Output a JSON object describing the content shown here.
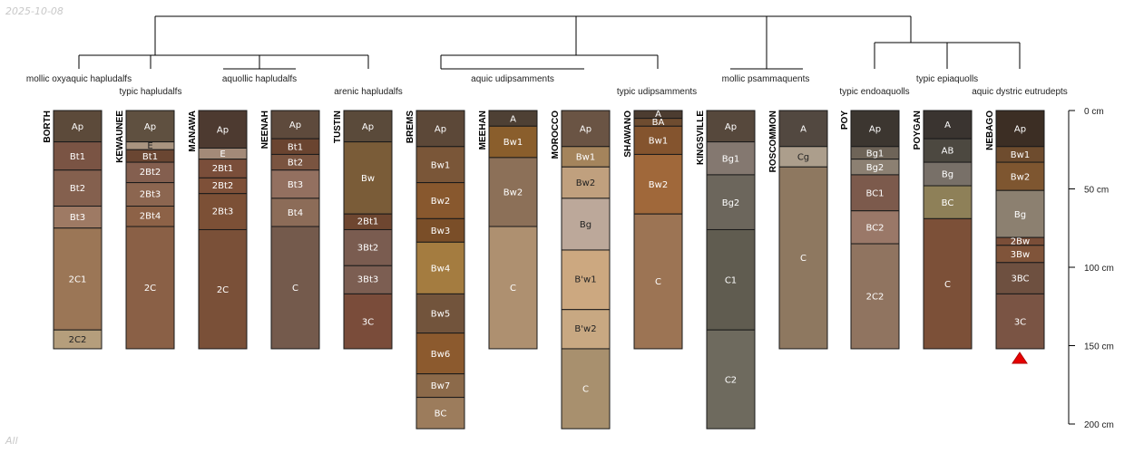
{
  "date_stamp": "2025-10-08",
  "corner_label": "All",
  "max_depth_cm": 200,
  "depth_axis": {
    "ticks": [
      0,
      50,
      100,
      150,
      200
    ],
    "tick_labels": [
      "0 cm",
      "50 cm",
      "100 cm",
      "150 cm",
      "200 cm"
    ]
  },
  "subgroups": [
    "mollic oxyaquic hapludalfs",
    "typic hapludalfs",
    "aquollic hapludalfs",
    "arenic hapludalfs",
    "aquic udipsamments",
    "typic udipsamments",
    "mollic psammaquents",
    "typic endoaquolls",
    "typic epiaquolls",
    "aquic dystric eutrudepts"
  ],
  "profiles": [
    {
      "name": "BORTH",
      "horizons": [
        {
          "name": "Ap",
          "top": 0,
          "bottom": 20,
          "color": "#5c4a3a"
        },
        {
          "name": "Bt1",
          "top": 20,
          "bottom": 38,
          "color": "#7a5444"
        },
        {
          "name": "Bt2",
          "top": 38,
          "bottom": 61,
          "color": "#84604e"
        },
        {
          "name": "Bt3",
          "top": 61,
          "bottom": 75,
          "color": "#9e7a64"
        },
        {
          "name": "2C1",
          "top": 75,
          "bottom": 140,
          "color": "#9b7656"
        },
        {
          "name": "2C2",
          "top": 140,
          "bottom": 152,
          "color": "#b59e7c"
        }
      ]
    },
    {
      "name": "KEWAUNEE",
      "horizons": [
        {
          "name": "Ap",
          "top": 0,
          "bottom": 20,
          "color": "#5f5040"
        },
        {
          "name": "E",
          "top": 20,
          "bottom": 25,
          "color": "#a99480"
        },
        {
          "name": "Bt1",
          "top": 25,
          "bottom": 33,
          "color": "#6a4632"
        },
        {
          "name": "2Bt2",
          "top": 33,
          "bottom": 46,
          "color": "#845f4f"
        },
        {
          "name": "2Bt3",
          "top": 46,
          "bottom": 61,
          "color": "#8c6650"
        },
        {
          "name": "2Bt4",
          "top": 61,
          "bottom": 74,
          "color": "#8d6247"
        },
        {
          "name": "2C",
          "top": 74,
          "bottom": 152,
          "color": "#8a6046"
        }
      ]
    },
    {
      "name": "MANAWA",
      "horizons": [
        {
          "name": "Ap",
          "top": 0,
          "bottom": 24,
          "color": "#4d3a30"
        },
        {
          "name": "E",
          "top": 24,
          "bottom": 31,
          "color": "#a38a78"
        },
        {
          "name": "2Bt1",
          "top": 31,
          "bottom": 43,
          "color": "#7a4e3a"
        },
        {
          "name": "2Bt2",
          "top": 43,
          "bottom": 53,
          "color": "#7e5038"
        },
        {
          "name": "2Bt3",
          "top": 53,
          "bottom": 76,
          "color": "#7c5036"
        },
        {
          "name": "2C",
          "top": 76,
          "bottom": 152,
          "color": "#7a5038"
        }
      ]
    },
    {
      "name": "NEENAH",
      "horizons": [
        {
          "name": "Ap",
          "top": 0,
          "bottom": 18,
          "color": "#5e4a3c"
        },
        {
          "name": "Bt1",
          "top": 18,
          "bottom": 28,
          "color": "#6a4430"
        },
        {
          "name": "Bt2",
          "top": 28,
          "bottom": 38,
          "color": "#7a5440"
        },
        {
          "name": "Bt3",
          "top": 38,
          "bottom": 56,
          "color": "#937060"
        },
        {
          "name": "Bt4",
          "top": 56,
          "bottom": 74,
          "color": "#8c6c58"
        },
        {
          "name": "C",
          "top": 74,
          "bottom": 152,
          "color": "#745a4c"
        }
      ]
    },
    {
      "name": "TUSTIN",
      "horizons": [
        {
          "name": "Ap",
          "top": 0,
          "bottom": 20,
          "color": "#5a4a3a"
        },
        {
          "name": "Bw",
          "top": 20,
          "bottom": 66,
          "color": "#7a5c38"
        },
        {
          "name": "2Bt1",
          "top": 66,
          "bottom": 76,
          "color": "#6e4630"
        },
        {
          "name": "3Bt2",
          "top": 76,
          "bottom": 99,
          "color": "#7a5c50"
        },
        {
          "name": "3Bt3",
          "top": 99,
          "bottom": 117,
          "color": "#7c5e52"
        },
        {
          "name": "3C",
          "top": 117,
          "bottom": 152,
          "color": "#7a4c3a"
        }
      ]
    },
    {
      "name": "BREMS",
      "horizons": [
        {
          "name": "Ap",
          "top": 0,
          "bottom": 23,
          "color": "#5c4838"
        },
        {
          "name": "Bw1",
          "top": 23,
          "bottom": 46,
          "color": "#7a5638"
        },
        {
          "name": "Bw2",
          "top": 46,
          "bottom": 69,
          "color": "#88582e"
        },
        {
          "name": "Bw3",
          "top": 69,
          "bottom": 84,
          "color": "#7a4e28"
        },
        {
          "name": "Bw4",
          "top": 84,
          "bottom": 117,
          "color": "#a47c40"
        },
        {
          "name": "Bw5",
          "top": 117,
          "bottom": 142,
          "color": "#72543c"
        },
        {
          "name": "Bw6",
          "top": 142,
          "bottom": 168,
          "color": "#8c5a2e"
        },
        {
          "name": "Bw7",
          "top": 168,
          "bottom": 183,
          "color": "#8c6a4a"
        },
        {
          "name": "BC",
          "top": 183,
          "bottom": 203,
          "color": "#9c7c5c"
        }
      ]
    },
    {
      "name": "MEEHAN",
      "horizons": [
        {
          "name": "A",
          "top": 0,
          "bottom": 10,
          "color": "#4e4034"
        },
        {
          "name": "Bw1",
          "top": 10,
          "bottom": 30,
          "color": "#8a5e2c"
        },
        {
          "name": "Bw2",
          "top": 30,
          "bottom": 74,
          "color": "#8c7058"
        },
        {
          "name": "C",
          "top": 74,
          "bottom": 152,
          "color": "#ae9070"
        }
      ]
    },
    {
      "name": "MOROCCO",
      "horizons": [
        {
          "name": "Ap",
          "top": 0,
          "bottom": 23,
          "color": "#6a5444"
        },
        {
          "name": "Bw1",
          "top": 23,
          "bottom": 36,
          "color": "#a4845c"
        },
        {
          "name": "Bw2",
          "top": 36,
          "bottom": 56,
          "color": "#c0a07e"
        },
        {
          "name": "Bg",
          "top": 56,
          "bottom": 89,
          "color": "#bca89a"
        },
        {
          "name": "B'w1",
          "top": 89,
          "bottom": 127,
          "color": "#cca880"
        },
        {
          "name": "B'w2",
          "top": 127,
          "bottom": 152,
          "color": "#c8a882"
        },
        {
          "name": "C",
          "top": 152,
          "bottom": 203,
          "color": "#a8906e"
        }
      ]
    },
    {
      "name": "SHAWANO",
      "horizons": [
        {
          "name": "A",
          "top": 0,
          "bottom": 5,
          "color": "#4c3c30"
        },
        {
          "name": "BA",
          "top": 5,
          "bottom": 10,
          "color": "#6e4c30"
        },
        {
          "name": "Bw1",
          "top": 10,
          "bottom": 28,
          "color": "#84542e"
        },
        {
          "name": "Bw2",
          "top": 28,
          "bottom": 66,
          "color": "#a0683a"
        },
        {
          "name": "C",
          "top": 66,
          "bottom": 152,
          "color": "#9c7454"
        }
      ]
    },
    {
      "name": "KINGSVILLE",
      "horizons": [
        {
          "name": "Ap",
          "top": 0,
          "bottom": 20,
          "color": "#56483c"
        },
        {
          "name": "Bg1",
          "top": 20,
          "bottom": 41,
          "color": "#847870"
        },
        {
          "name": "Bg2",
          "top": 41,
          "bottom": 76,
          "color": "#6c665c"
        },
        {
          "name": "C1",
          "top": 76,
          "bottom": 140,
          "color": "#605c50"
        },
        {
          "name": "C2",
          "top": 140,
          "bottom": 203,
          "color": "#6e6a5e"
        }
      ]
    },
    {
      "name": "ROSCOMMON",
      "horizons": [
        {
          "name": "A",
          "top": 0,
          "bottom": 23,
          "color": "#524840"
        },
        {
          "name": "Cg",
          "top": 23,
          "bottom": 36,
          "color": "#ac9e8c"
        },
        {
          "name": "C",
          "top": 36,
          "bottom": 152,
          "color": "#8e7860"
        }
      ]
    },
    {
      "name": "POY",
      "horizons": [
        {
          "name": "Ap",
          "top": 0,
          "bottom": 23,
          "color": "#3c3630"
        },
        {
          "name": "Bg1",
          "top": 23,
          "bottom": 31,
          "color": "#6e6458"
        },
        {
          "name": "Bg2",
          "top": 31,
          "bottom": 41,
          "color": "#8c8072"
        },
        {
          "name": "BC1",
          "top": 41,
          "bottom": 64,
          "color": "#7c5a4c"
        },
        {
          "name": "BC2",
          "top": 64,
          "bottom": 85,
          "color": "#9a7868"
        },
        {
          "name": "2C2",
          "top": 85,
          "bottom": 152,
          "color": "#907460"
        }
      ]
    },
    {
      "name": "POYGAN",
      "horizons": [
        {
          "name": "A",
          "top": 0,
          "bottom": 18,
          "color": "#3a3430"
        },
        {
          "name": "AB",
          "top": 18,
          "bottom": 33,
          "color": "#4c4840"
        },
        {
          "name": "Bg",
          "top": 33,
          "bottom": 48,
          "color": "#787068"
        },
        {
          "name": "BC",
          "top": 48,
          "bottom": 69,
          "color": "#8e8058"
        },
        {
          "name": "C",
          "top": 69,
          "bottom": 152,
          "color": "#7c5038"
        }
      ]
    },
    {
      "name": "NEBAGO",
      "horizons": [
        {
          "name": "Ap",
          "top": 0,
          "bottom": 23,
          "color": "#3c2e24"
        },
        {
          "name": "Bw1",
          "top": 23,
          "bottom": 33,
          "color": "#6e4c2e"
        },
        {
          "name": "Bw2",
          "top": 33,
          "bottom": 51,
          "color": "#7e5630"
        },
        {
          "name": "Bg",
          "top": 51,
          "bottom": 81,
          "color": "#8c8070"
        },
        {
          "name": "2Bw",
          "top": 81,
          "bottom": 86,
          "color": "#7a4e38"
        },
        {
          "name": "3Bw",
          "top": 86,
          "bottom": 97,
          "color": "#80543a"
        },
        {
          "name": "3BC",
          "top": 97,
          "bottom": 117,
          "color": "#6e5040"
        },
        {
          "name": "3C",
          "top": 117,
          "bottom": 152,
          "color": "#7a5444"
        }
      ]
    }
  ]
}
